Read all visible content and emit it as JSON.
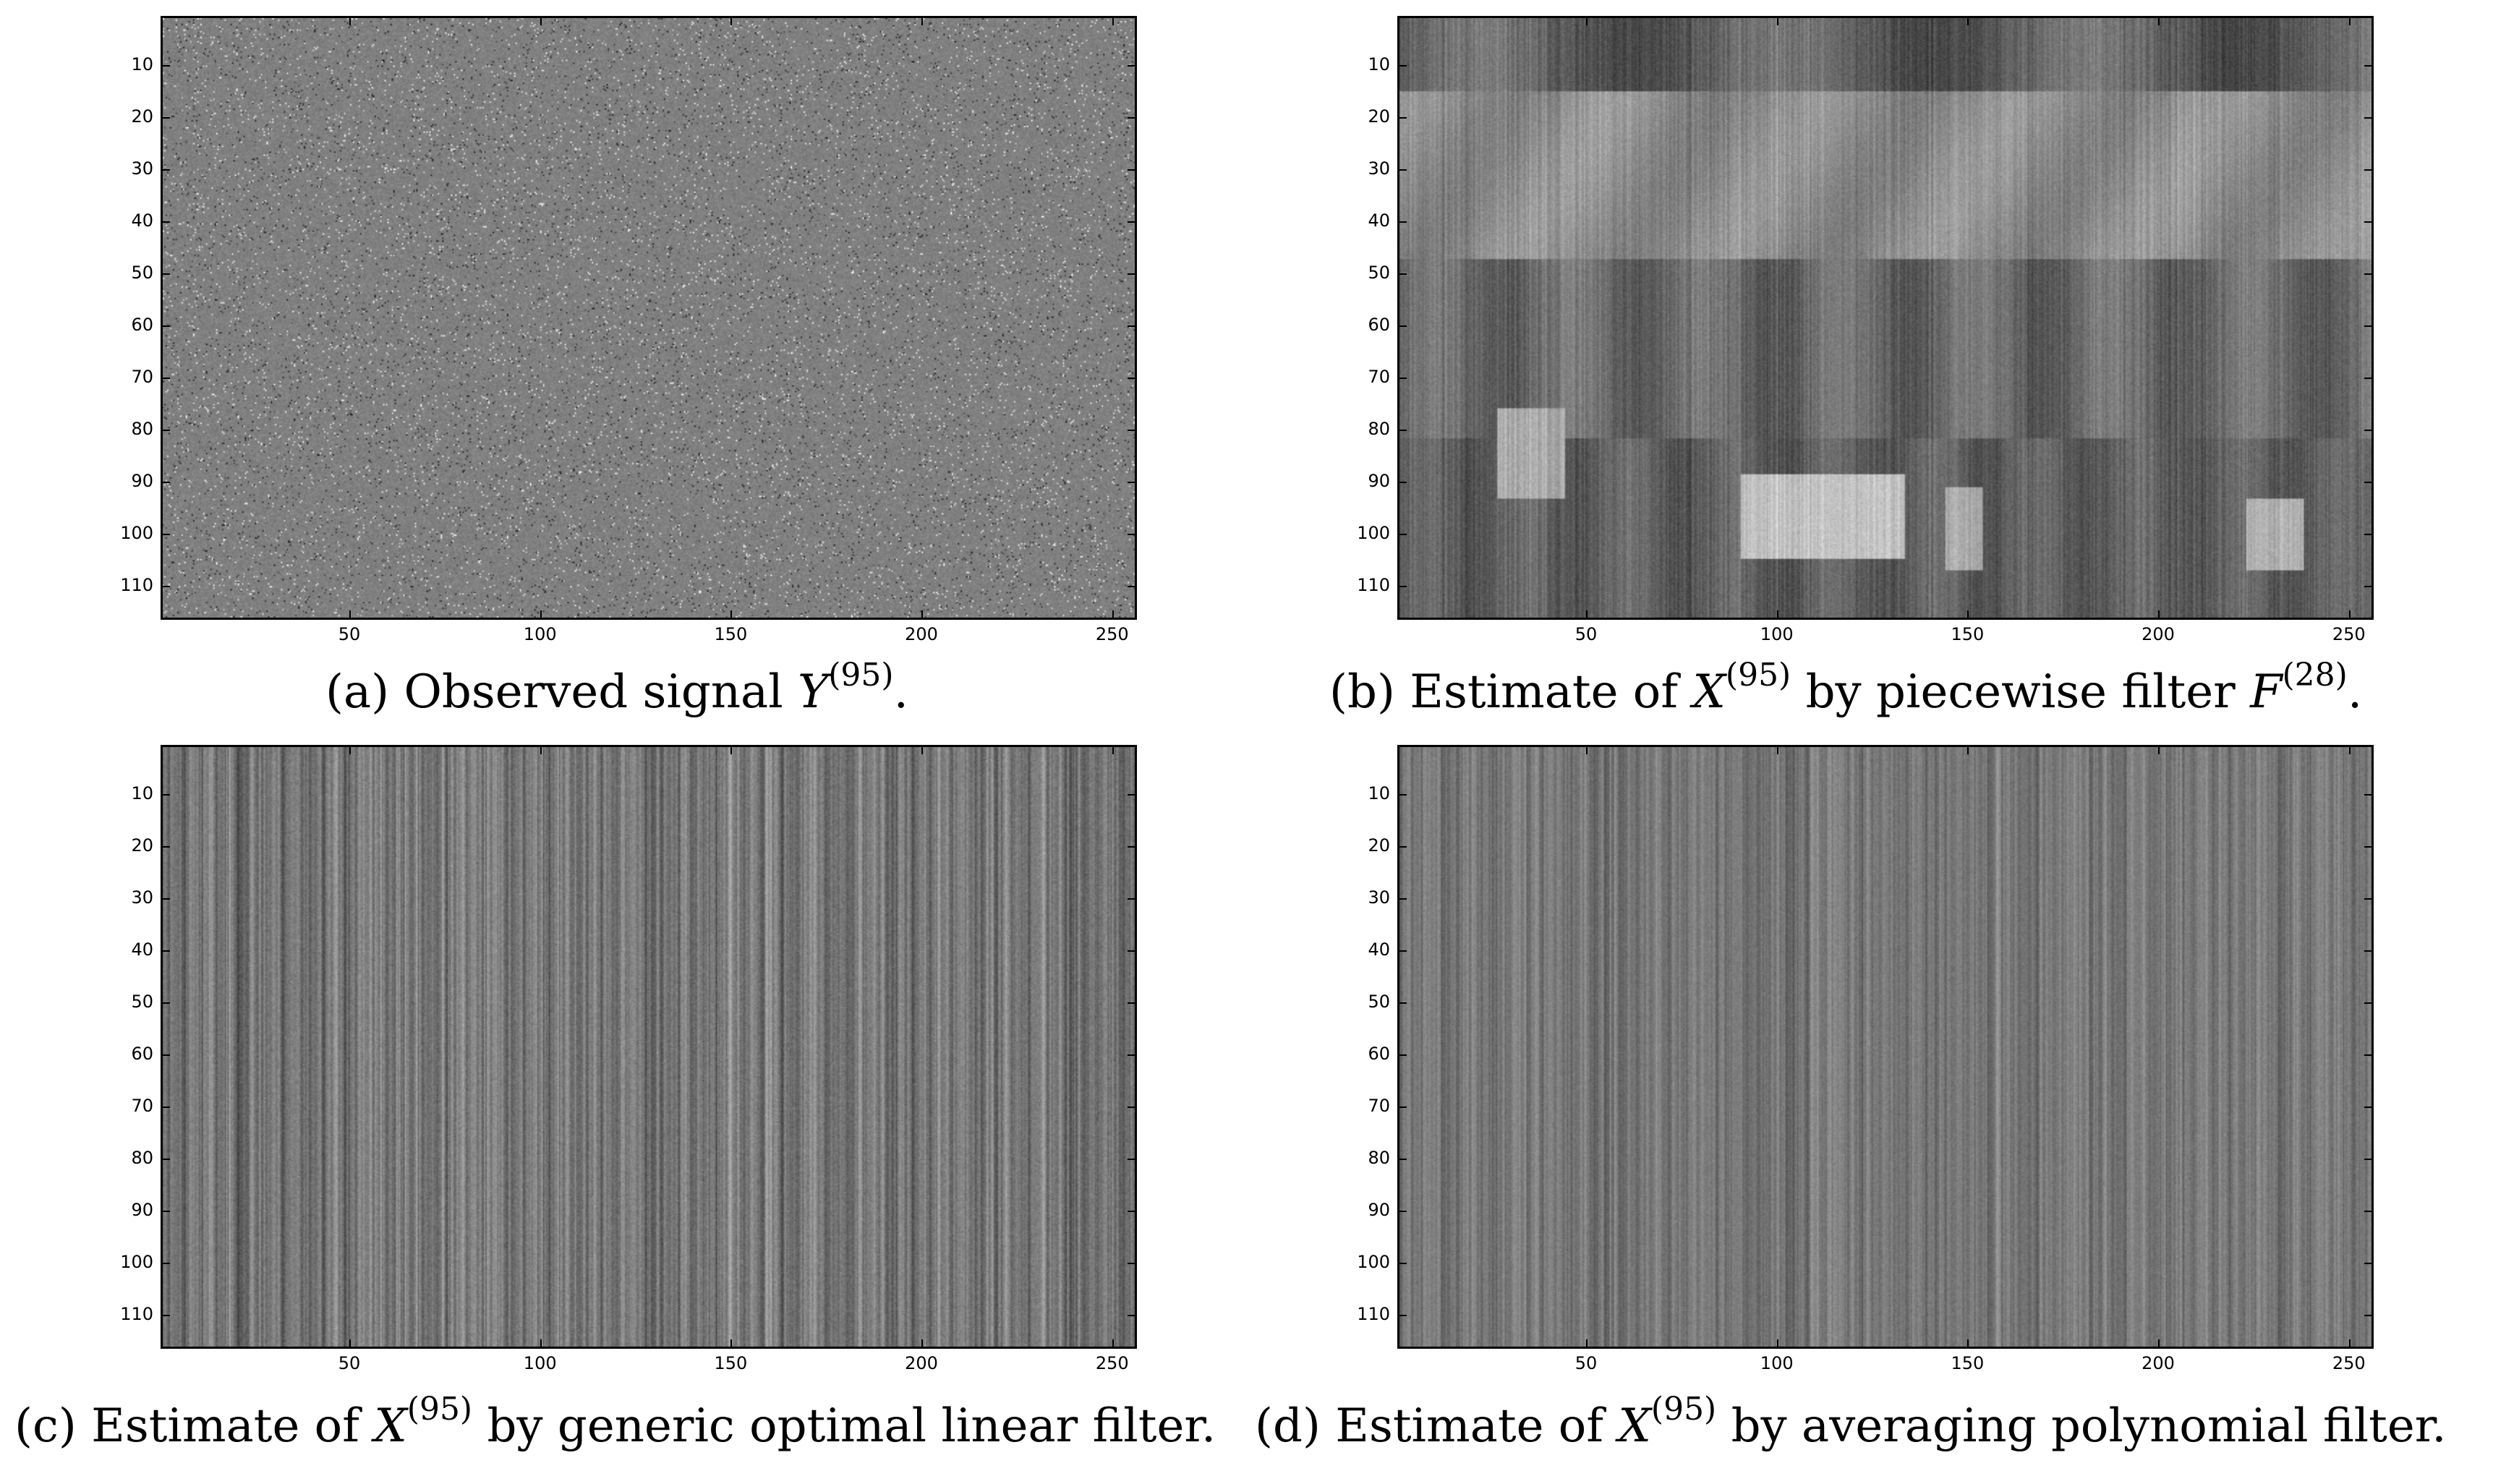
{
  "axes": {
    "y_ticks": [
      10,
      20,
      30,
      40,
      50,
      60,
      70,
      80,
      90,
      100,
      110
    ],
    "x_ticks": [
      50,
      100,
      150,
      200,
      250
    ],
    "y_range": [
      1,
      116
    ],
    "x_range": [
      1,
      256
    ]
  },
  "panels": [
    {
      "id": "a",
      "style": "noise",
      "caption": {
        "prefix": "(a) Observed signal ",
        "var": "Y",
        "sup": "(95)",
        "mid": "",
        "var2": "",
        "sup2": "",
        "suffix": "."
      }
    },
    {
      "id": "b",
      "style": "scene",
      "caption": {
        "prefix": "(b) Estimate of ",
        "var": "X",
        "sup": "(95)",
        "mid": " by piecewise filter ",
        "var2": "F",
        "sup2": "(28)",
        "suffix": "."
      }
    },
    {
      "id": "c",
      "style": "stripes_strong",
      "caption": {
        "prefix": "(c) Estimate of ",
        "var": "X",
        "sup": "(95)",
        "mid": " by generic optimal linear filter.",
        "var2": "",
        "sup2": "",
        "suffix": ""
      }
    },
    {
      "id": "d",
      "style": "stripes_soft",
      "caption": {
        "prefix": "(d) Estimate of ",
        "var": "X",
        "sup": "(95)",
        "mid": " by averaging polynomial filter.",
        "var2": "",
        "sup2": "",
        "suffix": ""
      }
    }
  ]
}
